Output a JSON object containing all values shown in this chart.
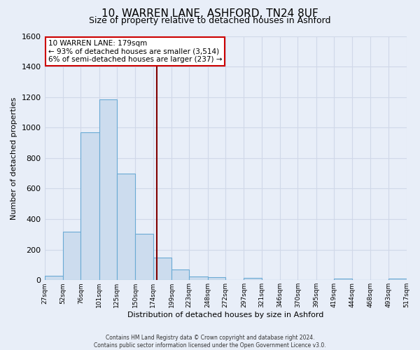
{
  "title": "10, WARREN LANE, ASHFORD, TN24 8UF",
  "subtitle": "Size of property relative to detached houses in Ashford",
  "xlabel": "Distribution of detached houses by size in Ashford",
  "ylabel": "Number of detached properties",
  "bin_edges": [
    27,
    52,
    76,
    101,
    125,
    150,
    174,
    199,
    223,
    248,
    272,
    297,
    321,
    346,
    370,
    395,
    419,
    444,
    468,
    493,
    517
  ],
  "bar_heights": [
    30,
    320,
    970,
    1185,
    700,
    305,
    150,
    70,
    25,
    20,
    0,
    15,
    0,
    0,
    0,
    0,
    10,
    0,
    0,
    10
  ],
  "bar_color": "#ccdcee",
  "bar_edge_color": "#6aaad4",
  "vline_x": 179,
  "vline_color": "#800000",
  "annotation_title": "10 WARREN LANE: 179sqm",
  "annotation_line1": "← 93% of detached houses are smaller (3,514)",
  "annotation_line2": "6% of semi-detached houses are larger (237) →",
  "annotation_box_facecolor": "#ffffff",
  "annotation_box_edgecolor": "#cc0000",
  "background_color": "#e8eef8",
  "grid_color": "#d0d8e8",
  "footer1": "Contains HM Land Registry data © Crown copyright and database right 2024.",
  "footer2": "Contains public sector information licensed under the Open Government Licence v3.0.",
  "ylim": [
    0,
    1600
  ],
  "yticks": [
    0,
    200,
    400,
    600,
    800,
    1000,
    1200,
    1400,
    1600
  ],
  "tick_labels": [
    "27sqm",
    "52sqm",
    "76sqm",
    "101sqm",
    "125sqm",
    "150sqm",
    "174sqm",
    "199sqm",
    "223sqm",
    "248sqm",
    "272sqm",
    "297sqm",
    "321sqm",
    "346sqm",
    "370sqm",
    "395sqm",
    "419sqm",
    "444sqm",
    "468sqm",
    "493sqm",
    "517sqm"
  ],
  "title_fontsize": 11,
  "subtitle_fontsize": 9,
  "xlabel_fontsize": 8,
  "ylabel_fontsize": 8,
  "ytick_fontsize": 8,
  "xtick_fontsize": 6.5
}
